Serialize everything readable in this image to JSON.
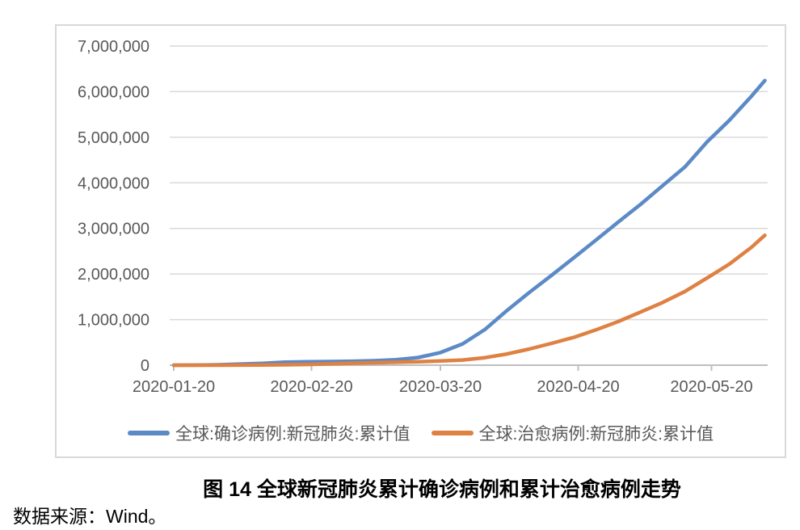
{
  "figure": {
    "caption": "图 14 全球新冠肺炎累计确诊病例和累计治愈病例走势",
    "source_note": "数据来源：Wind。"
  },
  "chart_data": {
    "type": "line",
    "title": "图 14 全球新冠肺炎累计确诊病例和累计治愈病例走势",
    "xlabel": "",
    "ylabel": "",
    "x_range": [
      "2020-01-20",
      "2020-06-01"
    ],
    "x_ticks": [
      "2020-01-20",
      "2020-02-20",
      "2020-03-20",
      "2020-04-20",
      "2020-05-20"
    ],
    "ylim": [
      0,
      7000000
    ],
    "y_tick_interval": 1000000,
    "y_tick_labels": [
      "0",
      "1,000,000",
      "2,000,000",
      "3,000,000",
      "4,000,000",
      "5,000,000",
      "6,000,000",
      "7,000,000"
    ],
    "grid": "horizontal-only",
    "legend_position": "bottom-center",
    "colors": {
      "confirmed_line": "#5B8AC6",
      "cured_line": "#DE8142",
      "gridline": "#D9D9D9",
      "axis_line": "#BFBFBF",
      "tick_text": "#595959",
      "card_border": "#D9D9D9"
    },
    "series": [
      {
        "id": "confirmed",
        "name": "全球:确诊病例:新冠肺炎:累计值",
        "color_key": "confirmed_line",
        "points": [
          [
            "2020-01-20",
            300
          ],
          [
            "2020-01-25",
            1500
          ],
          [
            "2020-01-30",
            8200
          ],
          [
            "2020-02-04",
            24600
          ],
          [
            "2020-02-09",
            40600
          ],
          [
            "2020-02-14",
            67100
          ],
          [
            "2020-02-19",
            75700
          ],
          [
            "2020-02-24",
            80100
          ],
          [
            "2020-02-29",
            86600
          ],
          [
            "2020-03-05",
            97900
          ],
          [
            "2020-03-10",
            118300
          ],
          [
            "2020-03-15",
            167500
          ],
          [
            "2020-03-20",
            275600
          ],
          [
            "2020-03-25",
            467700
          ],
          [
            "2020-03-30",
            782400
          ],
          [
            "2020-04-04",
            1201500
          ],
          [
            "2020-04-09",
            1595400
          ],
          [
            "2020-04-14",
            1970900
          ],
          [
            "2020-04-19",
            2355900
          ],
          [
            "2020-04-24",
            2745200
          ],
          [
            "2020-04-29",
            3138500
          ],
          [
            "2020-05-04",
            3525100
          ],
          [
            "2020-05-09",
            3938000
          ],
          [
            "2020-05-14",
            4347000
          ],
          [
            "2020-05-19",
            4897500
          ],
          [
            "2020-05-24",
            5370400
          ],
          [
            "2020-05-29",
            5900600
          ],
          [
            "2020-06-01",
            6242600
          ]
        ]
      },
      {
        "id": "cured",
        "name": "全球:治愈病例:新冠肺炎:累计值",
        "color_key": "cured_line",
        "points": [
          [
            "2020-01-20",
            30
          ],
          [
            "2020-01-25",
            40
          ],
          [
            "2020-01-30",
            140
          ],
          [
            "2020-02-04",
            890
          ],
          [
            "2020-02-09",
            3300
          ],
          [
            "2020-02-14",
            8100
          ],
          [
            "2020-02-19",
            16100
          ],
          [
            "2020-02-24",
            27900
          ],
          [
            "2020-02-29",
            42700
          ],
          [
            "2020-03-05",
            53700
          ],
          [
            "2020-03-10",
            64400
          ],
          [
            "2020-03-15",
            76600
          ],
          [
            "2020-03-20",
            91900
          ],
          [
            "2020-03-25",
            113800
          ],
          [
            "2020-03-30",
            164600
          ],
          [
            "2020-04-04",
            246200
          ],
          [
            "2020-04-09",
            353900
          ],
          [
            "2020-04-14",
            478000
          ],
          [
            "2020-04-19",
            610100
          ],
          [
            "2020-04-24",
            774500
          ],
          [
            "2020-04-29",
            957500
          ],
          [
            "2020-05-04",
            1164700
          ],
          [
            "2020-05-09",
            1375600
          ],
          [
            "2020-05-14",
            1616600
          ],
          [
            "2020-05-19",
            1912200
          ],
          [
            "2020-05-24",
            2216600
          ],
          [
            "2020-05-29",
            2587600
          ],
          [
            "2020-06-01",
            2849100
          ]
        ]
      }
    ]
  }
}
